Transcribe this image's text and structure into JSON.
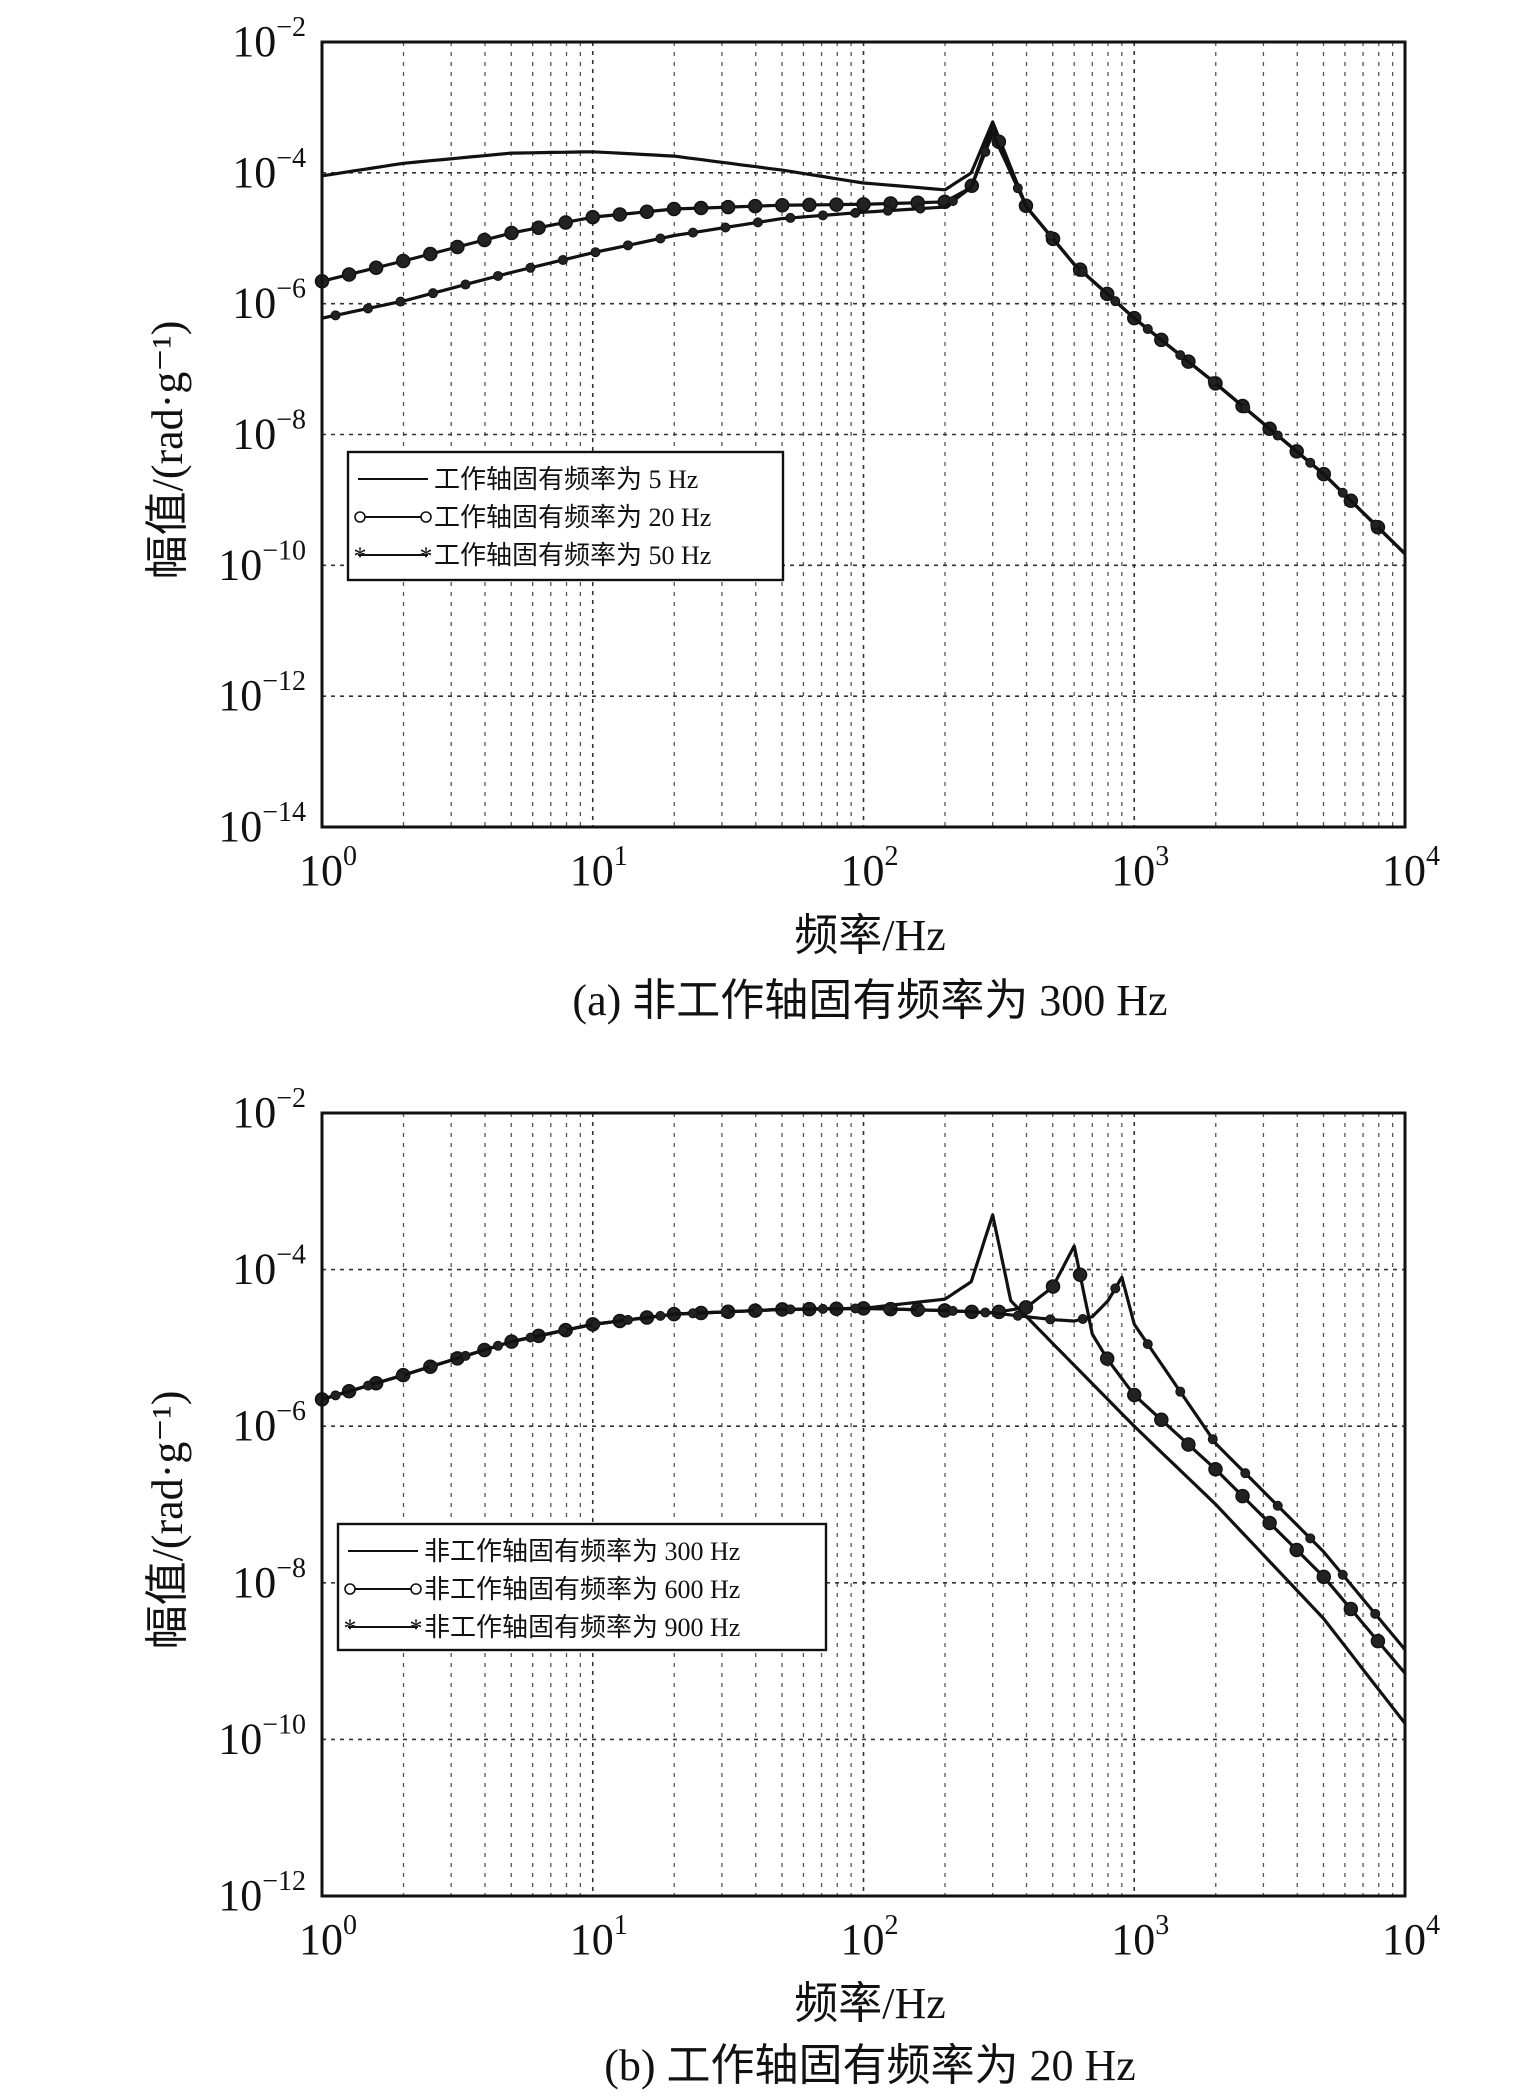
{
  "chart_data": [
    {
      "type": "line",
      "caption": "(a) 非工作轴固有频率为 300 Hz",
      "xlabel": "频率/Hz",
      "ylabel": "幅值/(rad·g⁻¹)",
      "x_scale": "log",
      "y_scale": "log",
      "xlim": [
        1,
        10000
      ],
      "ylim": [
        1e-14,
        0.01
      ],
      "grid": true,
      "legend_position": "center-left",
      "x_ticks": [
        {
          "base": "10",
          "exp": "0"
        },
        {
          "base": "10",
          "exp": "1"
        },
        {
          "base": "10",
          "exp": "2"
        },
        {
          "base": "10",
          "exp": "3"
        },
        {
          "base": "10",
          "exp": "4"
        }
      ],
      "y_ticks": [
        {
          "base": "10",
          "exp": "−2"
        },
        {
          "base": "10",
          "exp": "−4"
        },
        {
          "base": "10",
          "exp": "−6"
        },
        {
          "base": "10",
          "exp": "−8"
        },
        {
          "base": "10",
          "exp": "−10"
        },
        {
          "base": "10",
          "exp": "−12"
        },
        {
          "base": "10",
          "exp": "−14"
        }
      ],
      "series": [
        {
          "name": "工作轴固有频率为 5 Hz",
          "marker": "none",
          "x": [
            1,
            2,
            5,
            10,
            20,
            50,
            100,
            200,
            250,
            300,
            400,
            600,
            1000,
            2000,
            5000,
            10000
          ],
          "y": [
            9e-05,
            0.00014,
            0.0002,
            0.00021,
            0.00018,
            0.00011,
            7e-05,
            5.5e-05,
            0.0001,
            0.0006,
            3e-05,
            4e-06,
            6e-07,
            6e-08,
            2.5e-09,
            1.5e-10
          ]
        },
        {
          "name": "工作轴固有频率为 20 Hz",
          "marker": "circle",
          "x": [
            1,
            2,
            5,
            10,
            20,
            50,
            100,
            200,
            250,
            300,
            400,
            600,
            1000,
            2000,
            5000,
            10000
          ],
          "y": [
            2.2e-06,
            4.5e-06,
            1.2e-05,
            2.1e-05,
            2.8e-05,
            3.2e-05,
            3.3e-05,
            3.6e-05,
            6e-05,
            0.0005,
            3e-05,
            4e-06,
            6e-07,
            6e-08,
            2.5e-09,
            1.5e-10
          ]
        },
        {
          "name": "工作轴固有频率为 50 Hz",
          "marker": "star",
          "x": [
            1,
            2,
            5,
            10,
            20,
            50,
            100,
            200,
            250,
            300,
            400,
            600,
            1000,
            2000,
            5000,
            10000
          ],
          "y": [
            6e-07,
            1.1e-06,
            3e-06,
            6e-06,
            1.1e-05,
            2e-05,
            2.5e-05,
            3e-05,
            6e-05,
            0.0004,
            3e-05,
            4e-06,
            6e-07,
            6e-08,
            2.5e-09,
            1.5e-10
          ]
        }
      ]
    },
    {
      "type": "line",
      "caption": "(b) 工作轴固有频率为 20 Hz",
      "xlabel": "频率/Hz",
      "ylabel": "幅值/(rad·g⁻¹)",
      "x_scale": "log",
      "y_scale": "log",
      "xlim": [
        1,
        10000
      ],
      "ylim": [
        1e-12,
        0.01
      ],
      "grid": true,
      "legend_position": "lower-left",
      "x_ticks": [
        {
          "base": "10",
          "exp": "0"
        },
        {
          "base": "10",
          "exp": "1"
        },
        {
          "base": "10",
          "exp": "2"
        },
        {
          "base": "10",
          "exp": "3"
        },
        {
          "base": "10",
          "exp": "4"
        }
      ],
      "y_ticks": [
        {
          "base": "10",
          "exp": "−2"
        },
        {
          "base": "10",
          "exp": "−4"
        },
        {
          "base": "10",
          "exp": "−6"
        },
        {
          "base": "10",
          "exp": "−8"
        },
        {
          "base": "10",
          "exp": "−10"
        },
        {
          "base": "10",
          "exp": "−12"
        }
      ],
      "series": [
        {
          "name": "非工作轴固有频率为 300 Hz",
          "marker": "none",
          "x": [
            1,
            2,
            5,
            10,
            20,
            50,
            100,
            200,
            250,
            300,
            350,
            400,
            600,
            1000,
            2000,
            5000,
            10000
          ],
          "y": [
            2.2e-06,
            4.5e-06,
            1.2e-05,
            2e-05,
            2.7e-05,
            3.1e-05,
            3.2e-05,
            4.2e-05,
            7e-05,
            0.0005,
            4e-05,
            2.5e-05,
            6e-06,
            1e-06,
            1e-07,
            3.5e-09,
            1.6e-10
          ]
        },
        {
          "name": "非工作轴固有频率为 600 Hz",
          "marker": "circle",
          "x": [
            1,
            2,
            5,
            10,
            20,
            50,
            100,
            200,
            300,
            400,
            500,
            600,
            700,
            800,
            1000,
            2000,
            5000,
            10000
          ],
          "y": [
            2.2e-06,
            4.5e-06,
            1.2e-05,
            2e-05,
            2.7e-05,
            3.1e-05,
            3.2e-05,
            3e-05,
            2.8e-05,
            3.3e-05,
            6e-05,
            0.0002,
            1.5e-05,
            7e-06,
            2.5e-06,
            2.8e-07,
            1.2e-08,
            7e-10
          ]
        },
        {
          "name": "非工作轴固有频率为 900 Hz",
          "marker": "star",
          "x": [
            1,
            2,
            5,
            10,
            20,
            50,
            100,
            200,
            300,
            400,
            500,
            600,
            700,
            800,
            900,
            1000,
            2000,
            5000,
            10000
          ],
          "y": [
            2.2e-06,
            4.5e-06,
            1.2e-05,
            2e-05,
            2.7e-05,
            3.1e-05,
            3.2e-05,
            3e-05,
            2.8e-05,
            2.5e-05,
            2.3e-05,
            2.2e-05,
            2.5e-05,
            4e-05,
            8e-05,
            2e-05,
            6e-07,
            2.5e-08,
            1.4e-09
          ]
        }
      ]
    }
  ]
}
